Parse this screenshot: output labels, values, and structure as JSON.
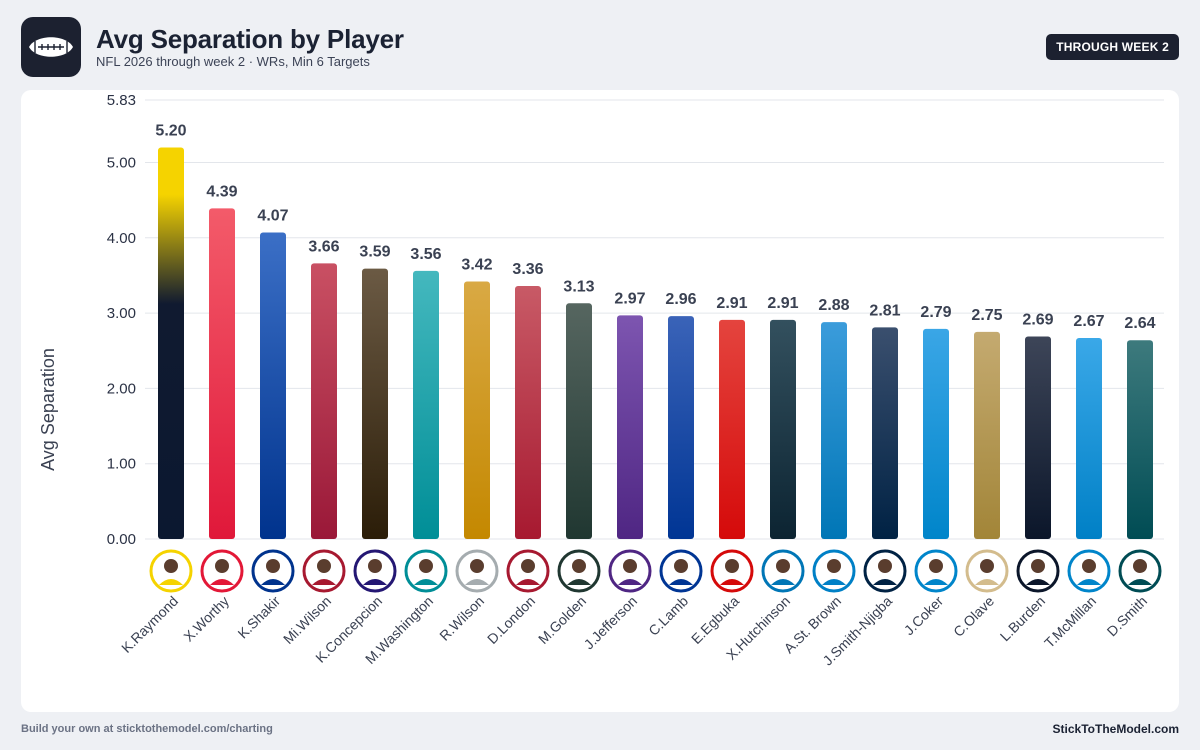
{
  "header": {
    "logo_icon": "football-icon",
    "title": "Avg Separation by Player",
    "subtitle": "NFL 2026 through week 2 · WRs, Min 6 Targets",
    "badge": "THROUGH WEEK 2"
  },
  "footer": {
    "left": "Build your own at sticktothemodel.com/charting",
    "right": "StickToTheModel.com"
  },
  "chart_data": {
    "type": "bar",
    "ylabel": "Avg Separation",
    "xlabel": "",
    "ylim": [
      0,
      5.83
    ],
    "yticks": [
      "0.00",
      "1.00",
      "2.00",
      "3.00",
      "4.00",
      "5.00",
      "5.83"
    ],
    "ytick_values": [
      0,
      1,
      2,
      3,
      4,
      5,
      5.83
    ],
    "grid": true,
    "categories": [
      "K.Raymond",
      "X.Worthy",
      "K.Shakir",
      "Mi.Wilson",
      "K.Concepcion",
      "M.Washington",
      "R.Wilson",
      "D.London",
      "M.Golden",
      "J.Jefferson",
      "C.Lamb",
      "E.Egbuka",
      "X.Hutchinson",
      "A.St. Brown",
      "J.Smith-Njigba",
      "J.Coker",
      "C.Olave",
      "L.Burden",
      "T.McMillan",
      "D.Smith"
    ],
    "values": [
      5.2,
      4.39,
      4.07,
      3.66,
      3.59,
      3.56,
      3.42,
      3.36,
      3.13,
      2.97,
      2.96,
      2.91,
      2.91,
      2.88,
      2.81,
      2.79,
      2.75,
      2.69,
      2.67,
      2.64
    ],
    "value_labels": [
      "5.20",
      "4.39",
      "4.07",
      "3.66",
      "3.59",
      "3.56",
      "3.42",
      "3.36",
      "3.13",
      "2.97",
      "2.96",
      "2.91",
      "2.91",
      "2.88",
      "2.81",
      "2.79",
      "2.75",
      "2.69",
      "2.67",
      "2.64"
    ],
    "bar_colors": [
      [
        "#f5d300",
        "#0b1830"
      ],
      [
        "#f35b6a",
        "#e0183a"
      ],
      [
        "#3b6fc6",
        "#00338d"
      ],
      [
        "#c95063",
        "#9a1838"
      ],
      [
        "#6b5a44",
        "#2b1d08"
      ],
      [
        "#44b8be",
        "#008e97"
      ],
      [
        "#d9a944",
        "#c48800"
      ],
      [
        "#c85a66",
        "#a71930"
      ],
      [
        "#566660",
        "#203731"
      ],
      [
        "#7d55b0",
        "#4f2683"
      ],
      [
        "#3a63b8",
        "#003594"
      ],
      [
        "#e4443e",
        "#d50a0a"
      ],
      [
        "#33505e",
        "#0c2432"
      ],
      [
        "#3b9cdb",
        "#0076b6"
      ],
      [
        "#3a4f6e",
        "#002244"
      ],
      [
        "#3aa6e6",
        "#0085ca"
      ],
      [
        "#c4aa70",
        "#a28538"
      ],
      [
        "#3d4558",
        "#0b162a"
      ],
      [
        "#3aa8e8",
        "#0080c6"
      ],
      [
        "#3d7a7d",
        "#004c54"
      ]
    ],
    "avatar_rings": [
      "#f5d300",
      "#e31837",
      "#00338d",
      "#a71930",
      "#241773",
      "#008e97",
      "#a5acaf",
      "#a71930",
      "#203731",
      "#4f2683",
      "#003594",
      "#d50a0a",
      "#0076b6",
      "#0080c6",
      "#002244",
      "#0085ca",
      "#d3bc8d",
      "#0b162a",
      "#0085ca",
      "#004c54"
    ]
  }
}
